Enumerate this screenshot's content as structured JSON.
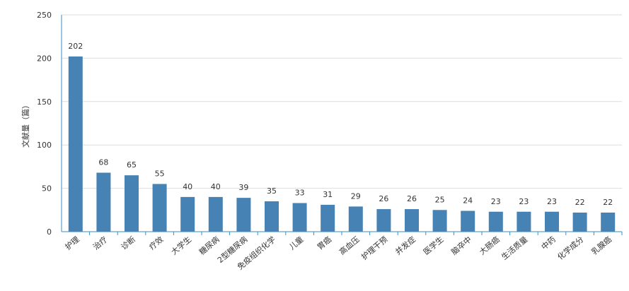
{
  "chart_data": {
    "type": "bar",
    "title": "",
    "xlabel": "",
    "ylabel": "文献量（篇）",
    "ylim": [
      0,
      250
    ],
    "yticks": [
      0,
      50,
      100,
      150,
      200,
      250
    ],
    "grid": true,
    "categories": [
      "护理",
      "治疗",
      "诊断",
      "疗效",
      "大学生",
      "糖尿病",
      "2型糖尿病",
      "免疫组织化学",
      "儿童",
      "胃癌",
      "高血压",
      "护理干预",
      "并发症",
      "医学生",
      "脑卒中",
      "大肠癌",
      "生活质量",
      "中药",
      "化学成分",
      "乳腺癌"
    ],
    "values": [
      202,
      68,
      65,
      55,
      40,
      40,
      39,
      35,
      33,
      31,
      29,
      26,
      26,
      25,
      24,
      23,
      23,
      23,
      22,
      22
    ],
    "colors": {
      "bar": "#4682b4",
      "axis": "#3a8fc7",
      "grid": "#dedede",
      "text": "#333333"
    }
  }
}
